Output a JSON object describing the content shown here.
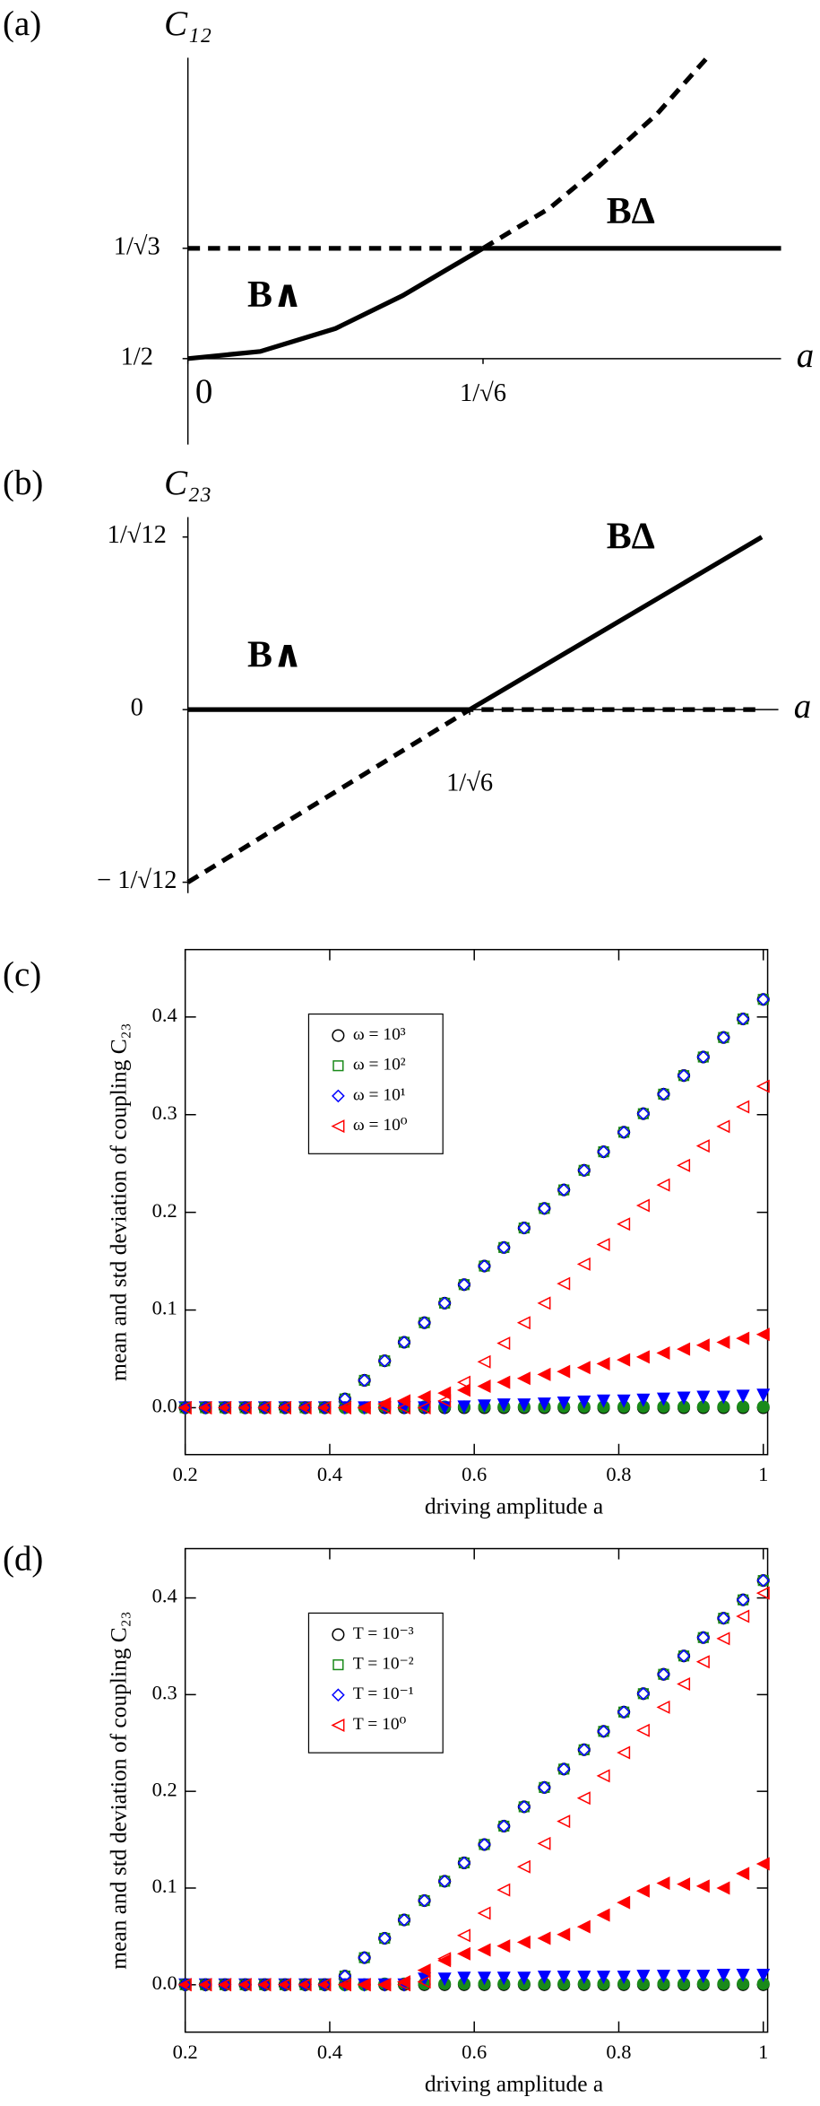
{
  "chart_data": [
    {
      "type": "line",
      "label": "(a)",
      "ylabel": "C₁₂",
      "xlabel": "a",
      "annotations": [
        "B∧",
        "BΔ"
      ],
      "xlim": [
        0,
        0.82
      ],
      "ylim": [
        0.44,
        0.71
      ],
      "xaxis_at": 0.5,
      "xticks": [
        0,
        {
          "value": 0.408,
          "label": "1/√6"
        }
      ],
      "yticks": [
        {
          "value": 0.5,
          "label": "1/2"
        },
        {
          "value": 0.577,
          "label": "1/√3"
        }
      ],
      "series": [
        {
          "style": "solid",
          "color": "#000000",
          "x": [
            0,
            0.1,
            0.204,
            0.297,
            0.408
          ],
          "values": [
            0.5,
            0.505,
            0.521,
            0.544,
            0.577
          ]
        },
        {
          "style": "dashed",
          "color": "#000000",
          "x": [
            0.408,
            0.5,
            0.557,
            0.649,
            0.723
          ],
          "values": [
            0.577,
            0.605,
            0.629,
            0.671,
            0.713
          ]
        },
        {
          "style": "dashed",
          "color": "#000000",
          "x": [
            0,
            0.408
          ],
          "values": [
            0.577,
            0.577
          ]
        },
        {
          "style": "solid",
          "color": "#000000",
          "x": [
            0.408,
            0.82
          ],
          "values": [
            0.577,
            0.577
          ]
        }
      ]
    },
    {
      "type": "line",
      "label": "(b)",
      "ylabel": "C₂₃",
      "xlabel": "a",
      "annotations": [
        "B∧",
        "BΔ"
      ],
      "xlim": [
        0,
        0.855
      ],
      "ylim": [
        -0.307,
        0.322
      ],
      "xaxis_at": 0,
      "xticks": [
        {
          "value": 0.408,
          "label": "1/√6"
        }
      ],
      "yticks": [
        {
          "value": 0.2887,
          "label": "1/√12"
        },
        0,
        {
          "value": -0.2887,
          "label": "− 1/√12"
        }
      ],
      "series": [
        {
          "style": "solid",
          "color": "#000000",
          "x": [
            0,
            0.408,
            0.831
          ],
          "values": [
            0,
            0,
            0.2887
          ]
        },
        {
          "style": "dashed",
          "color": "#000000",
          "x": [
            0,
            0.408,
            0.831
          ],
          "values": [
            -0.2887,
            0,
            0
          ]
        }
      ]
    },
    {
      "type": "scatter",
      "label": "(c)",
      "ylabel": "mean and std deviation of coupling C₂₃",
      "xlabel": "driving amplitude a",
      "xlim": [
        0.2,
        1.006
      ],
      "ylim": [
        -0.048,
        0.469
      ],
      "legend": "upper left",
      "xticks": [
        0.2,
        0.4,
        0.6,
        0.8,
        1
      ],
      "yticks": [
        {
          "value": 0,
          "label": "0.0"
        },
        0.1,
        0.2,
        0.3,
        0.4
      ],
      "x": [
        0.2,
        0.228,
        0.255,
        0.283,
        0.31,
        0.338,
        0.366,
        0.393,
        0.421,
        0.448,
        0.476,
        0.503,
        0.531,
        0.559,
        0.586,
        0.614,
        0.641,
        0.669,
        0.697,
        0.724,
        0.752,
        0.779,
        0.807,
        0.834,
        0.862,
        0.89,
        0.917,
        0.945,
        0.972,
        1.0
      ],
      "series": [
        {
          "color": "#000000",
          "marker": "circle",
          "filled": true,
          "values": [
            0,
            0,
            0,
            0,
            0,
            0,
            0,
            0,
            0,
            0,
            0,
            0,
            0,
            0,
            0,
            0,
            0,
            0,
            0,
            0,
            0,
            0,
            0,
            0,
            0,
            0,
            0,
            0,
            0,
            0
          ]
        },
        {
          "color": "#1a8a1a",
          "marker": "circle",
          "filled": true,
          "values": [
            0,
            0,
            0,
            0,
            0,
            0,
            0,
            0,
            0,
            0,
            0.001,
            0.001,
            0.001,
            0.001,
            0.001,
            0.001,
            0.001,
            0.001,
            0.001,
            0.001,
            0.001,
            0.001,
            0.001,
            0.001,
            0.001,
            0.001,
            0.001,
            0.001,
            0.001,
            0.001
          ]
        },
        {
          "color": "#0000ff",
          "marker": "triangle-down",
          "filled": true,
          "values": [
            0,
            0,
            0,
            0,
            0,
            0,
            0,
            0,
            0,
            0,
            0,
            0,
            0,
            0,
            0.001,
            0.002,
            0.003,
            0.003,
            0.004,
            0.005,
            0.006,
            0.007,
            0.007,
            0.008,
            0.009,
            0.01,
            0.011,
            0.011,
            0.012,
            0.013
          ]
        },
        {
          "color": "#ff0000",
          "marker": "triangle-left",
          "filled": true,
          "values": [
            0,
            0,
            0,
            0,
            0,
            0,
            0,
            0,
            0,
            0,
            0.004,
            0.007,
            0.011,
            0.015,
            0.018,
            0.022,
            0.026,
            0.03,
            0.034,
            0.037,
            0.041,
            0.045,
            0.049,
            0.052,
            0.056,
            0.06,
            0.064,
            0.067,
            0.071,
            0.075
          ]
        },
        {
          "name": "ω = 10³",
          "color": "#000000",
          "marker": "circle",
          "filled": false,
          "values": [
            0,
            0,
            0,
            0,
            0,
            0,
            0,
            0,
            0.009,
            0.028,
            0.048,
            0.067,
            0.087,
            0.107,
            0.126,
            0.145,
            0.164,
            0.184,
            0.204,
            0.223,
            0.243,
            0.262,
            0.282,
            0.301,
            0.321,
            0.34,
            0.359,
            0.379,
            0.398,
            0.418
          ]
        },
        {
          "name": "ω = 10²",
          "color": "#1a8a1a",
          "marker": "square",
          "filled": false,
          "values": [
            0,
            0,
            0,
            0,
            0,
            0,
            0,
            0,
            0.009,
            0.028,
            0.048,
            0.067,
            0.087,
            0.107,
            0.126,
            0.145,
            0.164,
            0.184,
            0.204,
            0.223,
            0.243,
            0.262,
            0.282,
            0.301,
            0.321,
            0.34,
            0.359,
            0.379,
            0.398,
            0.418
          ]
        },
        {
          "name": "ω = 10¹",
          "color": "#0000ff",
          "marker": "diamond",
          "filled": false,
          "values": [
            0,
            0,
            0,
            0,
            0,
            0,
            0,
            0,
            0.009,
            0.028,
            0.048,
            0.067,
            0.087,
            0.107,
            0.126,
            0.145,
            0.164,
            0.184,
            0.204,
            0.223,
            0.243,
            0.262,
            0.282,
            0.301,
            0.321,
            0.34,
            0.359,
            0.379,
            0.398,
            0.418
          ]
        },
        {
          "name": "ω = 10⁰",
          "color": "#ff0000",
          "marker": "triangle-left",
          "filled": false,
          "values": [
            0,
            0,
            0,
            0,
            0,
            0,
            0,
            0,
            0,
            0,
            0,
            0,
            0,
            0.007,
            0.026,
            0.047,
            0.066,
            0.087,
            0.107,
            0.127,
            0.147,
            0.167,
            0.188,
            0.207,
            0.228,
            0.248,
            0.268,
            0.288,
            0.308,
            0.329
          ]
        }
      ]
    },
    {
      "type": "scatter",
      "label": "(d)",
      "ylabel": "mean and std deviation of coupling C₂₃",
      "xlabel": "driving amplitude a",
      "xlim": [
        0.2,
        1.006
      ],
      "ylim": [
        -0.049,
        0.451
      ],
      "legend": "upper left",
      "xticks": [
        0.2,
        0.4,
        0.6,
        0.8,
        1
      ],
      "yticks": [
        {
          "value": 0,
          "label": "0.0"
        },
        0.1,
        0.2,
        0.3,
        0.4
      ],
      "x": [
        0.2,
        0.228,
        0.255,
        0.283,
        0.31,
        0.338,
        0.366,
        0.393,
        0.421,
        0.448,
        0.476,
        0.503,
        0.531,
        0.559,
        0.586,
        0.614,
        0.641,
        0.669,
        0.697,
        0.724,
        0.752,
        0.779,
        0.807,
        0.834,
        0.862,
        0.89,
        0.917,
        0.945,
        0.972,
        1.0
      ],
      "series": [
        {
          "color": "#000000",
          "marker": "circle",
          "filled": true,
          "values": [
            0,
            0,
            0,
            0,
            0,
            0,
            0,
            0,
            0,
            0,
            0,
            0,
            0,
            0,
            0,
            0,
            0,
            0,
            0,
            0,
            0,
            0,
            0,
            0,
            0,
            0,
            0,
            0,
            0,
            0
          ]
        },
        {
          "color": "#1a8a1a",
          "marker": "circle",
          "filled": true,
          "values": [
            0,
            0,
            0,
            0,
            0,
            0,
            0,
            0,
            0,
            0,
            0.001,
            0.001,
            0.001,
            0.001,
            0.001,
            0.001,
            0.001,
            0.001,
            0.001,
            0.001,
            0.001,
            0.001,
            0.001,
            0.001,
            0.001,
            0.001,
            0.001,
            0.001,
            0.001,
            0.001
          ]
        },
        {
          "color": "#0000ff",
          "marker": "triangle-down",
          "filled": true,
          "values": [
            0,
            0,
            0,
            0,
            0,
            0,
            0,
            0,
            0,
            0,
            0,
            0,
            0.006,
            0.006,
            0.007,
            0.007,
            0.007,
            0.007,
            0.008,
            0.008,
            0.008,
            0.008,
            0.008,
            0.009,
            0.009,
            0.009,
            0.009,
            0.01,
            0.01,
            0.01
          ]
        },
        {
          "color": "#ff0000",
          "marker": "triangle-left",
          "filled": true,
          "values": [
            0,
            0,
            0,
            0,
            0,
            0,
            0,
            0,
            0,
            0,
            0,
            0.003,
            0.015,
            0.025,
            0.032,
            0.036,
            0.04,
            0.044,
            0.048,
            0.052,
            0.06,
            0.072,
            0.085,
            0.097,
            0.105,
            0.104,
            0.102,
            0.1,
            0.115,
            0.125
          ]
        },
        {
          "name": "T = 10⁻³",
          "color": "#000000",
          "marker": "circle",
          "filled": false,
          "values": [
            0,
            0,
            0,
            0,
            0,
            0,
            0,
            0,
            0.009,
            0.028,
            0.048,
            0.067,
            0.087,
            0.107,
            0.126,
            0.145,
            0.164,
            0.184,
            0.204,
            0.223,
            0.243,
            0.262,
            0.282,
            0.301,
            0.321,
            0.34,
            0.359,
            0.379,
            0.398,
            0.418
          ]
        },
        {
          "name": "T = 10⁻²",
          "color": "#1a8a1a",
          "marker": "square",
          "filled": false,
          "values": [
            0,
            0,
            0,
            0,
            0,
            0,
            0,
            0,
            0.009,
            0.028,
            0.048,
            0.067,
            0.087,
            0.107,
            0.126,
            0.145,
            0.164,
            0.184,
            0.204,
            0.223,
            0.243,
            0.262,
            0.282,
            0.301,
            0.321,
            0.34,
            0.359,
            0.379,
            0.398,
            0.418
          ]
        },
        {
          "name": "T = 10⁻¹",
          "color": "#0000ff",
          "marker": "diamond",
          "filled": false,
          "values": [
            0,
            0,
            0,
            0,
            0,
            0,
            0,
            0,
            0.009,
            0.028,
            0.048,
            0.067,
            0.087,
            0.107,
            0.126,
            0.145,
            0.164,
            0.184,
            0.204,
            0.223,
            0.243,
            0.262,
            0.282,
            0.301,
            0.321,
            0.34,
            0.359,
            0.379,
            0.398,
            0.418
          ]
        },
        {
          "name": "T = 10⁰",
          "color": "#ff0000",
          "marker": "triangle-left",
          "filled": false,
          "values": [
            0,
            0,
            0,
            0,
            0,
            0,
            0,
            0,
            0,
            0,
            0,
            0,
            0.003,
            0.027,
            0.051,
            0.074,
            0.098,
            0.122,
            0.146,
            0.169,
            0.193,
            0.216,
            0.24,
            0.263,
            0.287,
            0.311,
            0.334,
            0.358,
            0.381,
            0.405
          ]
        }
      ]
    }
  ]
}
